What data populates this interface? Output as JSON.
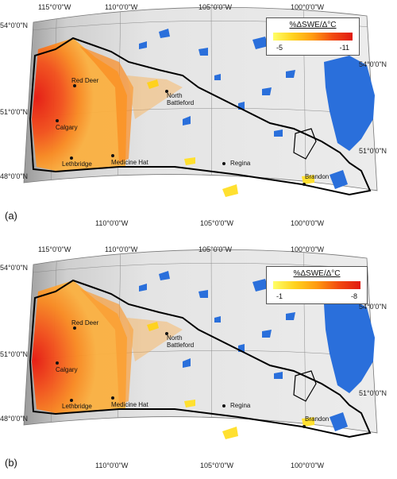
{
  "panels": [
    {
      "id": "a",
      "label": "(a)",
      "legend": {
        "title": "%ΔSWE/Δ°C",
        "min": "-5",
        "max": "-11",
        "color_low": "#ffff66",
        "color_high": "#e01a10"
      },
      "lon_labels": [
        "115°0'0\"W",
        "110°0'0\"W",
        "105°0'0\"W",
        "100°0'0\"W"
      ],
      "lat_labels_left": [
        "54°0'0\"N",
        "51°0'0\"N",
        "48°0'0\"N"
      ],
      "lat_labels_right": [
        "54°0'0\"N",
        "51°0'0\"N"
      ],
      "lon_labels_bottom": [
        "110°0'0\"W",
        "105°0'0\"W",
        "100°0'0\"W"
      ],
      "cities": [
        "Red Deer",
        "Calgary",
        "Lethbridge",
        "Medicine Hat",
        "North\nBattleford",
        "Regina",
        "Brandon"
      ]
    },
    {
      "id": "b",
      "label": "(b)",
      "legend": {
        "title": "%ΔSWE/Δ°C",
        "min": "-1",
        "max": "-8",
        "color_low": "#ffff66",
        "color_high": "#e01a10"
      },
      "lon_labels": [
        "115°0'0\"W",
        "110°0'0\"W",
        "105°0'0\"W",
        "100°0'0\"W"
      ],
      "lat_labels_left": [
        "54°0'0\"N",
        "51°0'0\"N",
        "48°0'0\"N"
      ],
      "lat_labels_right": [
        "54°0'0\"N",
        "51°0'0\"N"
      ],
      "lon_labels_bottom": [
        "110°0'0\"W",
        "105°0'0\"W",
        "100°0'0\"W"
      ],
      "cities": [
        "Red Deer",
        "Calgary",
        "Lethbridge",
        "Medicine Hat",
        "North\nBattleford",
        "Regina",
        "Brandon"
      ]
    }
  ],
  "colors": {
    "water": "#2a6fdb",
    "boundary": "#000000",
    "terrain_light": "#e6e6e6",
    "terrain_dark": "#a8a8a8",
    "grid": "#8a8a8a"
  }
}
